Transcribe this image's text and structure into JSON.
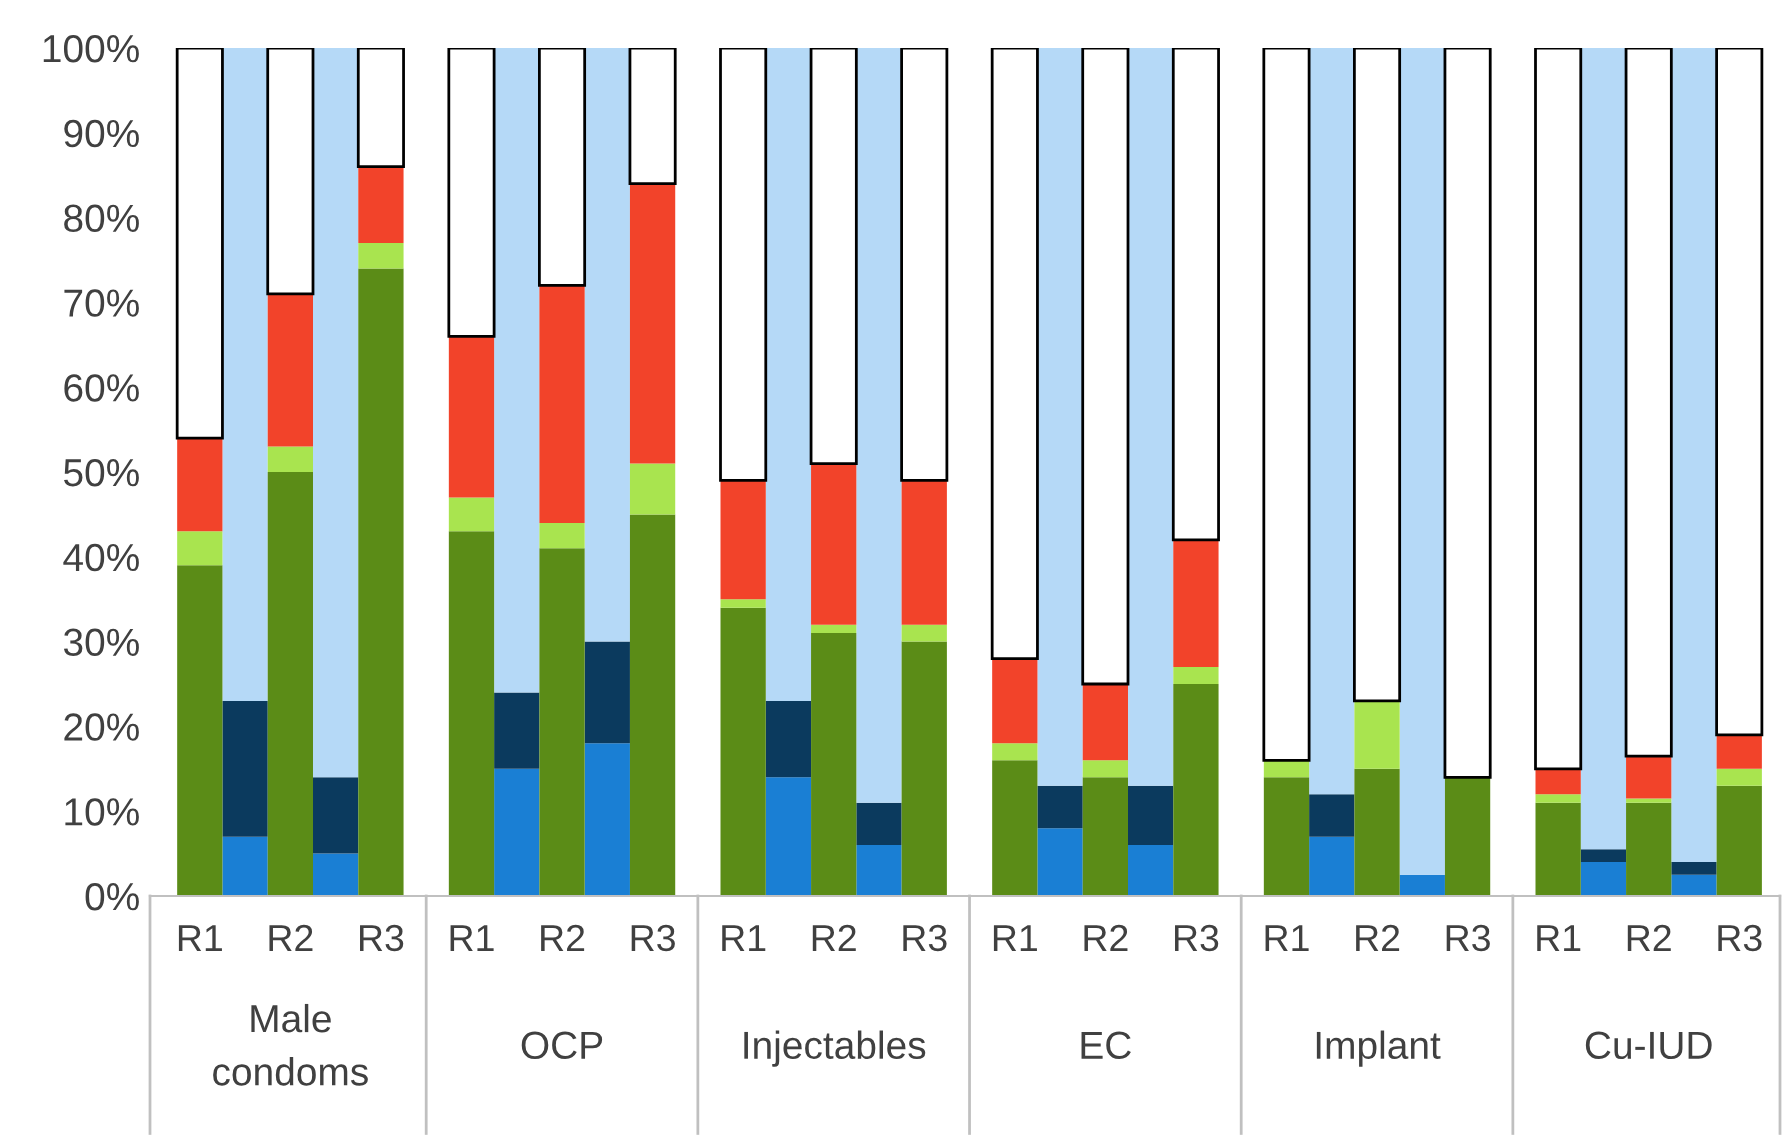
{
  "chart_data": {
    "type": "bar",
    "stacked": true,
    "legend": false,
    "grid": false,
    "categories": [
      "R1",
      null,
      "R2",
      null,
      "R3",
      "R1",
      null,
      "R2",
      null,
      "R3",
      "R1",
      null,
      "R2",
      null,
      "R3",
      "R1",
      null,
      "R2",
      null,
      "R3",
      "R1",
      null,
      "R2",
      null,
      "R3",
      "R1",
      null,
      "R2",
      null,
      "R3"
    ],
    "annotations": [
      "Male\ncondoms",
      "OCP",
      "Injectables",
      "EC",
      "Implant",
      "Cu-IUD"
    ],
    "ylim": [
      0,
      100
    ],
    "yticks": [
      {
        "value": 0,
        "label": "0%"
      },
      {
        "value": 10,
        "label": "10%"
      },
      {
        "value": 20,
        "label": "20%"
      },
      {
        "value": 30,
        "label": "30%"
      },
      {
        "value": 40,
        "label": "40%"
      },
      {
        "value": 50,
        "label": "50%"
      },
      {
        "value": 60,
        "label": "60%"
      },
      {
        "value": 70,
        "label": "70%"
      },
      {
        "value": 80,
        "label": "80%"
      },
      {
        "value": 90,
        "label": "90%"
      },
      {
        "value": 100,
        "label": "100%"
      }
    ],
    "series": [
      {
        "color": "#1a7fd4",
        "values": [
          null,
          7,
          null,
          5,
          null,
          null,
          15,
          null,
          18,
          null,
          null,
          14,
          null,
          6,
          null,
          null,
          8,
          null,
          6,
          null,
          null,
          7,
          null,
          2.5,
          null,
          null,
          4,
          null,
          2.5,
          null
        ]
      },
      {
        "color": "#0b3a5e",
        "values": [
          null,
          16,
          null,
          9,
          null,
          null,
          9,
          null,
          12,
          null,
          null,
          9,
          null,
          5,
          null,
          null,
          5,
          null,
          7,
          null,
          null,
          5,
          null,
          0,
          null,
          null,
          1.5,
          null,
          1.5,
          null
        ]
      },
      {
        "color": "#b5d9f7",
        "values": [
          null,
          77,
          null,
          86,
          null,
          null,
          76,
          null,
          70,
          null,
          null,
          77,
          null,
          89,
          null,
          null,
          87,
          null,
          87,
          null,
          null,
          88,
          null,
          97.5,
          null,
          null,
          94.5,
          null,
          96,
          null
        ]
      },
      {
        "color": "#5b8c17",
        "values": [
          39,
          null,
          50,
          null,
          74,
          43,
          null,
          41,
          null,
          45,
          34,
          null,
          31,
          null,
          30,
          16,
          null,
          14,
          null,
          25,
          14,
          null,
          15,
          null,
          14,
          11,
          null,
          11,
          null,
          13
        ]
      },
      {
        "color": "#a9e44f",
        "values": [
          4,
          null,
          3,
          null,
          3,
          4,
          null,
          3,
          null,
          6,
          1,
          null,
          1,
          null,
          2,
          2,
          null,
          2,
          null,
          2,
          2,
          null,
          8,
          null,
          0,
          1,
          null,
          0.5,
          null,
          2
        ]
      },
      {
        "color": "#f2432a",
        "values": [
          11,
          null,
          18,
          null,
          9,
          19,
          null,
          28,
          null,
          33,
          14,
          null,
          19,
          null,
          17,
          10,
          null,
          9,
          null,
          15,
          0,
          null,
          0,
          null,
          0,
          3,
          null,
          5,
          null,
          4
        ]
      },
      {
        "color": "#ffffff",
        "values": [
          46,
          null,
          29,
          null,
          14,
          34,
          null,
          28,
          null,
          16,
          51,
          null,
          49,
          null,
          51,
          72,
          null,
          75,
          null,
          58,
          84,
          null,
          77,
          null,
          86,
          85,
          null,
          83.5,
          null,
          81
        ]
      }
    ]
  }
}
